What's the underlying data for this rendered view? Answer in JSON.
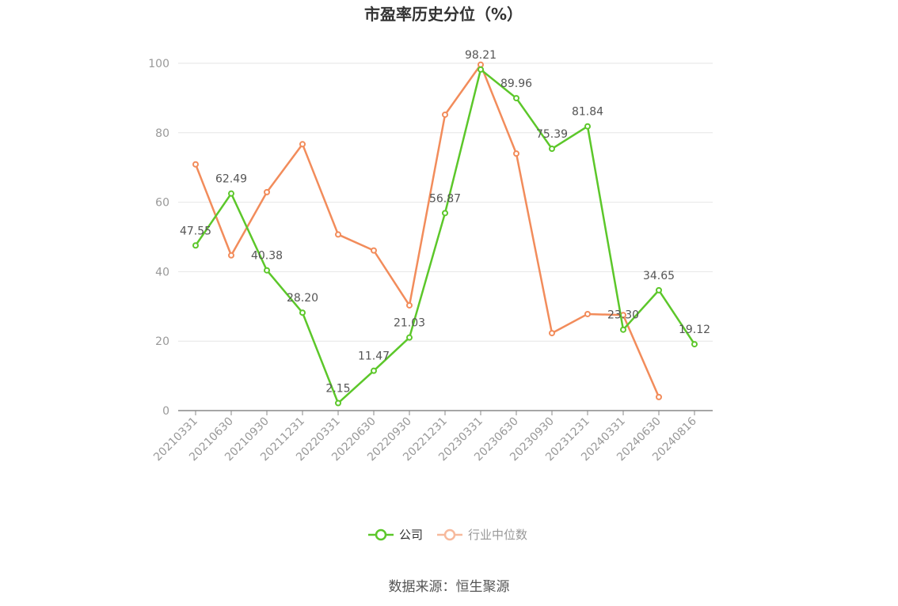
{
  "chart_data": {
    "type": "line",
    "title": "市盈率历史分位（%）",
    "categories": [
      "20210331",
      "20210630",
      "20210930",
      "20211231",
      "20220331",
      "20220630",
      "20220930",
      "20221231",
      "20230331",
      "20230630",
      "20230930",
      "20231231",
      "20240331",
      "20240630",
      "20240816"
    ],
    "ylim": [
      0,
      100
    ],
    "yticks": [
      0,
      20,
      40,
      60,
      80,
      100
    ],
    "grid": true,
    "legend_position": "bottom-center",
    "series": [
      {
        "name": "公司",
        "color": "#5cc72a",
        "values": [
          47.55,
          62.49,
          40.38,
          28.2,
          2.15,
          11.47,
          21.03,
          56.87,
          98.21,
          89.96,
          75.39,
          81.84,
          23.3,
          34.65,
          19.12
        ],
        "labels": [
          "47.55",
          "62.49",
          "40.38",
          "28.20",
          "2.15",
          "11.47",
          "21.03",
          "56.87",
          "98.21",
          "89.96",
          "75.39",
          "81.84",
          "23.30",
          "34.65",
          "19.12"
        ]
      },
      {
        "name": "行业中位数",
        "color": "#f28c5b",
        "legend_color": "#f7b99c",
        "values": [
          70.9,
          44.7,
          62.9,
          76.7,
          50.7,
          46.1,
          30.3,
          85.2,
          99.6,
          74.0,
          22.3,
          27.8,
          27.5,
          3.9,
          null
        ]
      }
    ]
  },
  "footer": {
    "source": "数据来源：恒生聚源"
  }
}
